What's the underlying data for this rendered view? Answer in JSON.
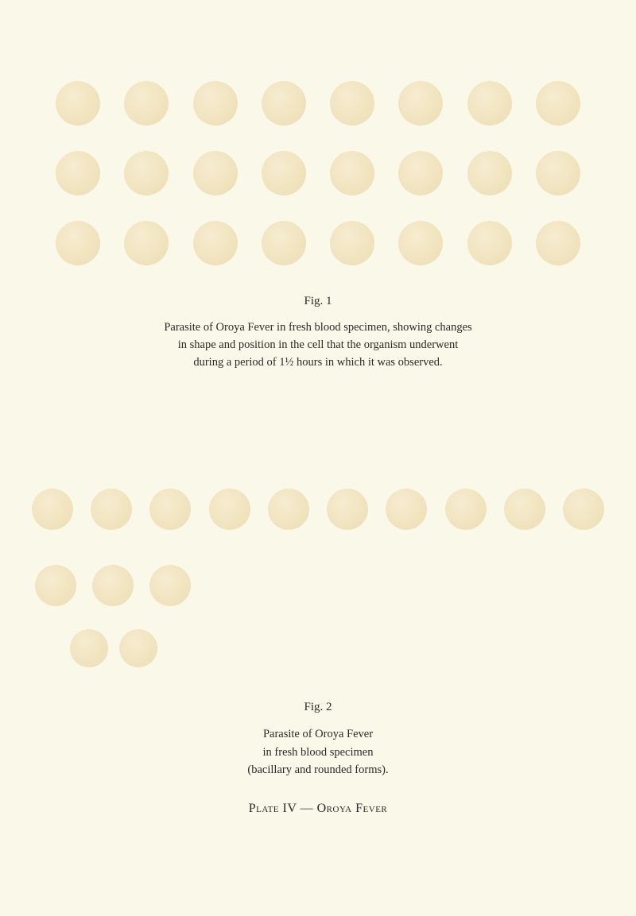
{
  "fig1": {
    "label": "Fig. 1",
    "caption_line1": "Parasite of Oroya Fever in fresh blood specimen, showing changes",
    "caption_line2": "in shape and position in the cell that the organism underwent",
    "caption_line3": "during a period of 1½ hours in which it was observed.",
    "rows": 3,
    "cells_per_row": 8,
    "cell_color_light": "#f5e8c8",
    "cell_color_dark": "#e8d4a0",
    "cell_size": 56
  },
  "fig2": {
    "label": "Fig. 2",
    "caption_line1": "Parasite of Oroya Fever",
    "caption_line2": "in fresh blood specimen",
    "caption_line3": "(bacillary and rounded forms).",
    "row1_cells": 10,
    "row2_cells": 3,
    "row3_cells": 2,
    "cell_color_light": "#f0dfb8",
    "cell_color_dark": "#e2c990",
    "cell_size": 52
  },
  "plate": {
    "label": "Plate IV — Oroya Fever"
  },
  "colors": {
    "background": "#faf8e8",
    "text": "#2a2a2a"
  },
  "typography": {
    "body_font": "Georgia, Times New Roman, serif",
    "caption_size": 14.5,
    "label_size": 15,
    "plate_size": 16
  }
}
